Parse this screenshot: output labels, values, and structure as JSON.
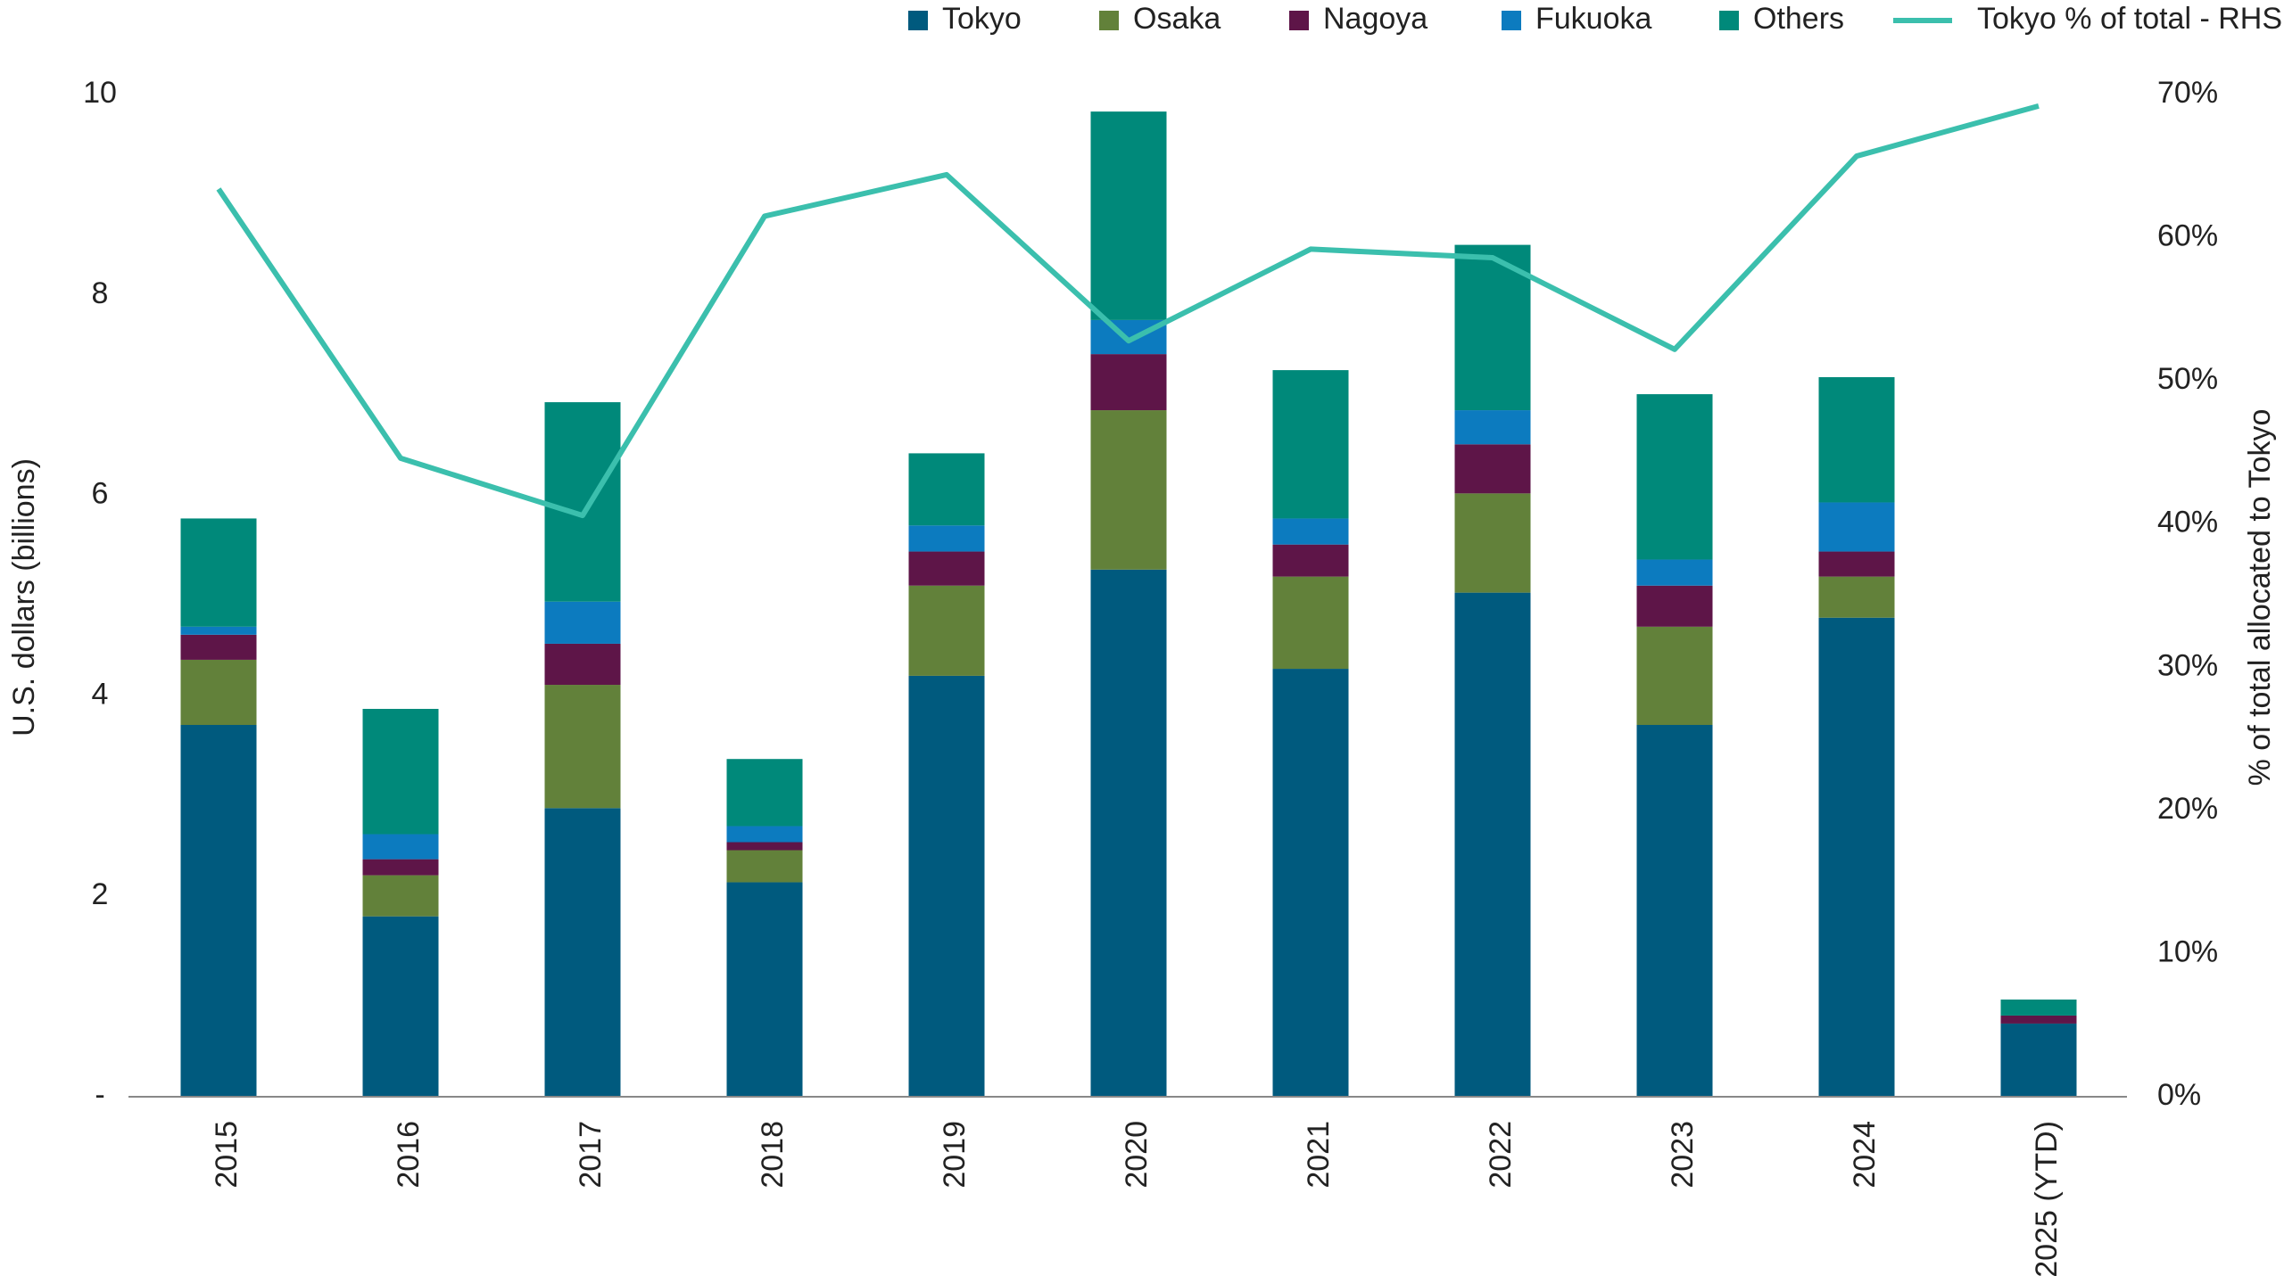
{
  "chart_data": {
    "type": "bar",
    "y_label": "U.S. dollars (billions)",
    "y2_label": "% of total allocated to Tokyo",
    "categories": [
      "2015",
      "2016",
      "2017",
      "2018",
      "2019",
      "2020",
      "2021",
      "2022",
      "2023",
      "2024",
      "2025 (YTD)"
    ],
    "series": [
      {
        "name": "Tokyo",
        "color": "#005a7e",
        "values": [
          3.71,
          1.8,
          2.88,
          2.14,
          4.2,
          5.26,
          4.27,
          5.03,
          3.71,
          4.78,
          0.73
        ]
      },
      {
        "name": "Osaka",
        "color": "#62813a",
        "values": [
          0.65,
          0.41,
          1.23,
          0.32,
          0.9,
          1.59,
          0.92,
          0.99,
          0.98,
          0.41,
          0
        ]
      },
      {
        "name": "Nagoya",
        "color": "#5e1548",
        "values": [
          0.25,
          0.16,
          0.41,
          0.08,
          0.34,
          0.56,
          0.32,
          0.49,
          0.41,
          0.25,
          0.08
        ]
      },
      {
        "name": "Fukuoka",
        "color": "#0c7bbf",
        "values": [
          0.08,
          0.25,
          0.42,
          0.16,
          0.26,
          0.34,
          0.26,
          0.34,
          0.26,
          0.49,
          0
        ]
      },
      {
        "name": "Others",
        "color": "#00897a",
        "values": [
          1.08,
          1.25,
          1.99,
          0.67,
          0.72,
          2.08,
          1.48,
          1.65,
          1.65,
          1.25,
          0.16
        ]
      },
      {
        "name": "Tokyo % of total - RHS",
        "type": "line",
        "axis": "y2",
        "color": "#3bbfad",
        "values": [
          63.4,
          44.6,
          40.6,
          61.5,
          64.4,
          52.8,
          59.2,
          58.6,
          52.2,
          65.7,
          69.2
        ]
      }
    ],
    "ylim": [
      0,
      10
    ],
    "yticks": [
      {
        "value": 0,
        "label": "-"
      },
      2,
      4,
      6,
      8,
      10
    ],
    "y2lim": [
      0,
      70
    ],
    "y2ticks": [
      {
        "value": 0,
        "label": "0%"
      },
      {
        "value": 10,
        "label": "10%"
      },
      {
        "value": 20,
        "label": "20%"
      },
      {
        "value": 30,
        "label": "30%"
      },
      {
        "value": 40,
        "label": "40%"
      },
      {
        "value": 50,
        "label": "50%"
      },
      {
        "value": 60,
        "label": "60%"
      },
      {
        "value": 70,
        "label": "70%"
      }
    ],
    "stacked": true,
    "grid": false,
    "legend": "top"
  }
}
